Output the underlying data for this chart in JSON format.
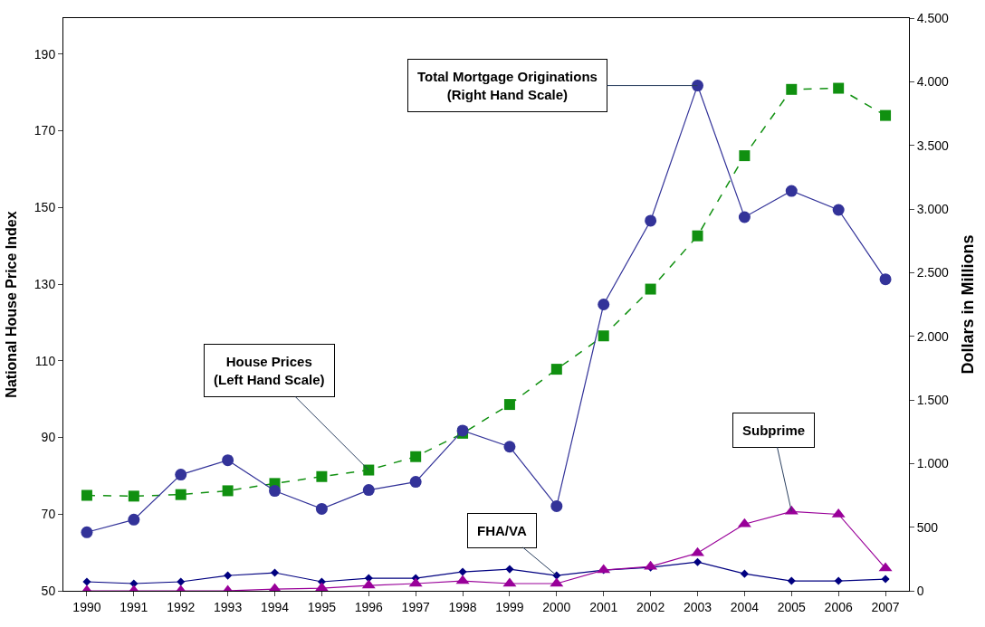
{
  "chart_data": {
    "type": "line",
    "categories": [
      "1990",
      "1991",
      "1992",
      "1993",
      "1994",
      "1995",
      "1996",
      "1997",
      "1998",
      "1999",
      "2000",
      "2001",
      "2002",
      "2003",
      "2004",
      "2005",
      "2006",
      "2007"
    ],
    "ylabel": "National House Price Index",
    "y2label": "Dollars in Millions",
    "ylim": [
      50,
      199.4
    ],
    "yticks": [
      50,
      70,
      90,
      110,
      130,
      150,
      170,
      190
    ],
    "y2lim": [
      0,
      4500
    ],
    "y2ticks": [
      0,
      500,
      {
        "value": 1000,
        "label": "1.000"
      },
      {
        "value": 1500,
        "label": "1.500"
      },
      {
        "value": 2000,
        "label": "2.000"
      },
      {
        "value": 2500,
        "label": "2.500"
      },
      {
        "value": 3000,
        "label": "3.000"
      },
      {
        "value": 3500,
        "label": "3.500"
      },
      {
        "value": 4000,
        "label": "4.000"
      },
      {
        "value": 4500,
        "label": "4.500"
      }
    ],
    "series": [
      {
        "color": "#109010",
        "marker": "square",
        "line_style": "dashed",
        "values": [
          74.9,
          74.7,
          75.1,
          76.1,
          78.0,
          79.8,
          81.5,
          85.0,
          91.1,
          98.6,
          107.8,
          116.5,
          128.7,
          142.6,
          163.5,
          180.8,
          181.1,
          174.0
        ]
      },
      {
        "color": "#333399",
        "marker": "circle",
        "line_style": "solid",
        "axis": "y2",
        "values": [
          460,
          559,
          913,
          1026,
          785,
          644,
          792,
          856,
          1259,
          1132,
          665,
          2250,
          2908,
          3970,
          2936,
          3142,
          2993,
          2448
        ]
      },
      {
        "color": "#000080",
        "marker": "diamond",
        "line_style": "solid",
        "axis": "y2",
        "values": [
          71,
          57,
          71,
          120,
          142,
          71,
          99,
          99,
          149,
          170,
          120,
          163,
          184,
          226,
          134,
          78,
          78,
          92
        ]
      },
      {
        "color": "#990099",
        "marker": "triangle",
        "line_style": "solid",
        "axis": "y2",
        "values": [
          0,
          0,
          0,
          0,
          14,
          21,
          42,
          57,
          78,
          57,
          57,
          163,
          191,
          297,
          524,
          623,
          601,
          177
        ]
      }
    ],
    "annotations": [
      {
        "text": "House Prices\n(Left Hand Scale)",
        "x": "1996",
        "y": 81.5
      },
      {
        "text": "Total Mortgage Originations\n(Right Hand Scale)",
        "x": "2003",
        "y": 181.8
      },
      {
        "text": "FHA/VA",
        "x": "2000",
        "y": 54.0
      },
      {
        "text": "Subprime",
        "x": "2005",
        "y": 70.7
      }
    ]
  }
}
